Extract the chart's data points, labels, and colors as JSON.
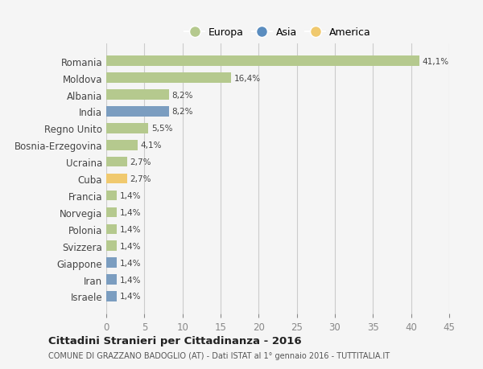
{
  "countries": [
    "Romania",
    "Moldova",
    "Albania",
    "India",
    "Regno Unito",
    "Bosnia-Erzegovina",
    "Ucraina",
    "Cuba",
    "Francia",
    "Norvegia",
    "Polonia",
    "Svizzera",
    "Giappone",
    "Iran",
    "Israele"
  ],
  "values": [
    41.1,
    16.4,
    8.2,
    8.2,
    5.5,
    4.1,
    2.7,
    2.7,
    1.4,
    1.4,
    1.4,
    1.4,
    1.4,
    1.4,
    1.4
  ],
  "labels": [
    "41,1%",
    "16,4%",
    "8,2%",
    "8,2%",
    "5,5%",
    "4,1%",
    "2,7%",
    "2,7%",
    "1,4%",
    "1,4%",
    "1,4%",
    "1,4%",
    "1,4%",
    "1,4%",
    "1,4%"
  ],
  "continents": [
    "Europa",
    "Europa",
    "Europa",
    "Asia",
    "Europa",
    "Europa",
    "Europa",
    "America",
    "Europa",
    "Europa",
    "Europa",
    "Europa",
    "Asia",
    "Asia",
    "Asia"
  ],
  "colors": {
    "Europa": "#b5c98e",
    "Asia": "#7b9dc0",
    "America": "#f0c96e"
  },
  "legend_colors": {
    "Europa": "#b5c98e",
    "Asia": "#5b8dbf",
    "America": "#f0c96e"
  },
  "bg_color": "#f5f5f5",
  "title": "Cittadini Stranieri per Cittadinanza - 2016",
  "subtitle": "COMUNE DI GRAZZANO BADOGLIO (AT) - Dati ISTAT al 1° gennaio 2016 - TUTTITALIA.IT",
  "xlim": [
    0,
    45
  ],
  "xticks": [
    0,
    5,
    10,
    15,
    20,
    25,
    30,
    35,
    40,
    45
  ]
}
